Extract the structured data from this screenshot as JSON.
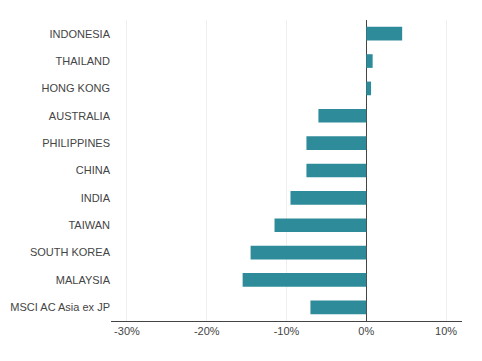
{
  "chart_data": {
    "type": "bar",
    "orientation": "horizontal",
    "categories": [
      "INDONESIA",
      "THAILAND",
      "HONG KONG",
      "AUSTRALIA",
      "PHILIPPINES",
      "CHINA",
      "INDIA",
      "TAIWAN",
      "SOUTH KOREA",
      "MALAYSIA",
      "MSCI AC Asia ex JP"
    ],
    "values": [
      4.5,
      0.8,
      0.6,
      -6.0,
      -7.5,
      -7.5,
      -9.5,
      -11.5,
      -14.5,
      -15.5,
      -7.0
    ],
    "color": "#2e8b9a",
    "xlim": [
      -32,
      12
    ],
    "xticks": [
      {
        "value": -30,
        "label": "-30%"
      },
      {
        "value": -20,
        "label": "-20%"
      },
      {
        "value": -10,
        "label": "-10%"
      },
      {
        "value": 0,
        "label": "0%"
      },
      {
        "value": 10,
        "label": "10%"
      }
    ],
    "grid": true
  }
}
